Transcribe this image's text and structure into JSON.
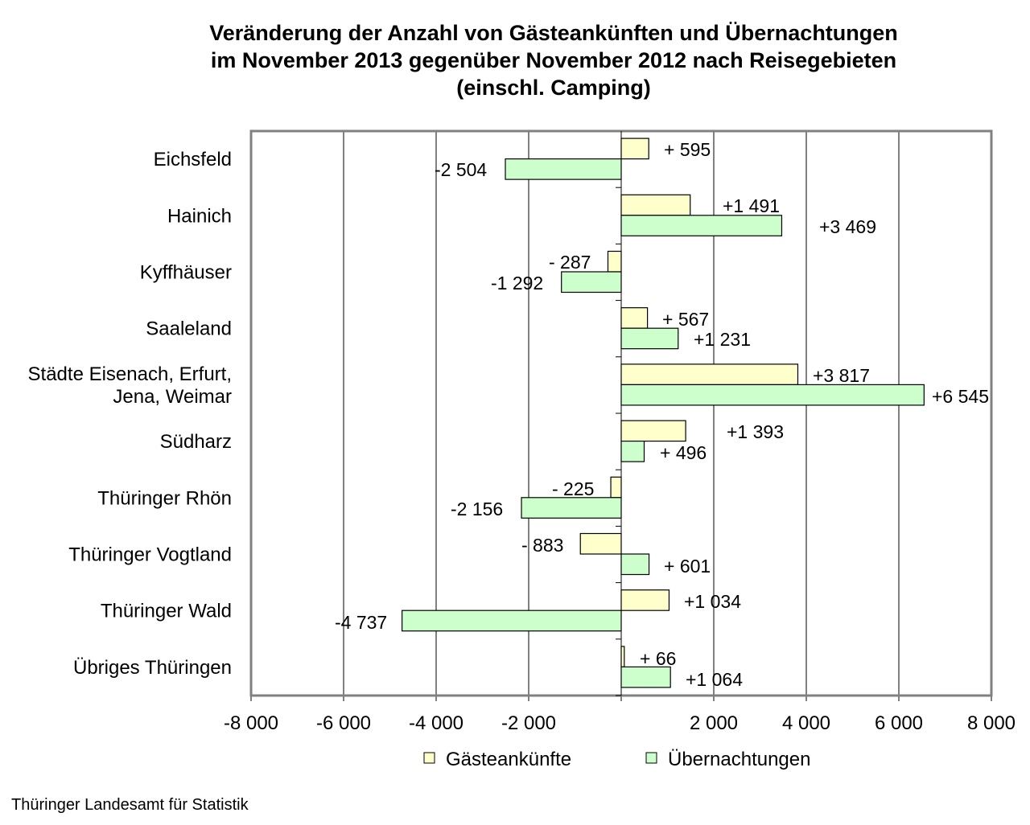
{
  "chart_data": {
    "type": "bar",
    "orientation": "horizontal",
    "title": "Veränderung der Anzahl von Gästeankünften und Übernachtungen im November 2013 gegenüber November 2012 nach Reisegebieten (einschl. Camping)",
    "title_lines": [
      "Veränderung der Anzahl von Gästeankünften und Übernachtungen",
      "im November 2013 gegenüber November 2012 nach Reisegebieten",
      "(einschl. Camping)"
    ],
    "categories": [
      [
        "Eichsfeld"
      ],
      [
        "Hainich"
      ],
      [
        "Kyffhäuser"
      ],
      [
        "Saaleland"
      ],
      [
        "Städte Eisenach, Erfurt,",
        "Jena, Weimar"
      ],
      [
        "Südharz"
      ],
      [
        "Thüringer Rhön"
      ],
      [
        "Thüringer Vogtland"
      ],
      [
        "Thüringer Wald"
      ],
      [
        "Übriges Thüringen"
      ]
    ],
    "series": [
      {
        "name": "Gästeankünfte",
        "color": "#FFFFCC",
        "values": [
          595,
          1491,
          -287,
          567,
          3817,
          1393,
          -225,
          -883,
          1034,
          66
        ],
        "labels": [
          "+ 595",
          "+1 491",
          "- 287",
          "+ 567",
          "+3 817",
          "+1 393",
          "- 225",
          "- 883",
          "+1 034",
          "+ 66"
        ]
      },
      {
        "name": "Übernachtungen",
        "color": "#CCFFCC",
        "values": [
          -2504,
          3469,
          -1292,
          1231,
          6545,
          496,
          -2156,
          601,
          -4737,
          1064
        ],
        "labels": [
          "-2 504",
          "+3 469",
          "-1 292",
          "+1 231",
          "+6 545",
          "+ 496",
          "-2 156",
          "+ 601",
          "-4 737",
          "+1 064"
        ]
      }
    ],
    "xlim": [
      -8000,
      8000
    ],
    "xticks": [
      -8000,
      -6000,
      -4000,
      -2000,
      2000,
      4000,
      6000,
      8000
    ],
    "xtick_labels": [
      "-8 000",
      "-6 000",
      "-4 000",
      "-2 000",
      "2 000",
      "4 000",
      "6 000",
      "8 000"
    ],
    "grid": "vertical",
    "legend": "bottom",
    "xlabel": "",
    "ylabel": ""
  },
  "footer": "Thüringer Landesamt für Statistik"
}
